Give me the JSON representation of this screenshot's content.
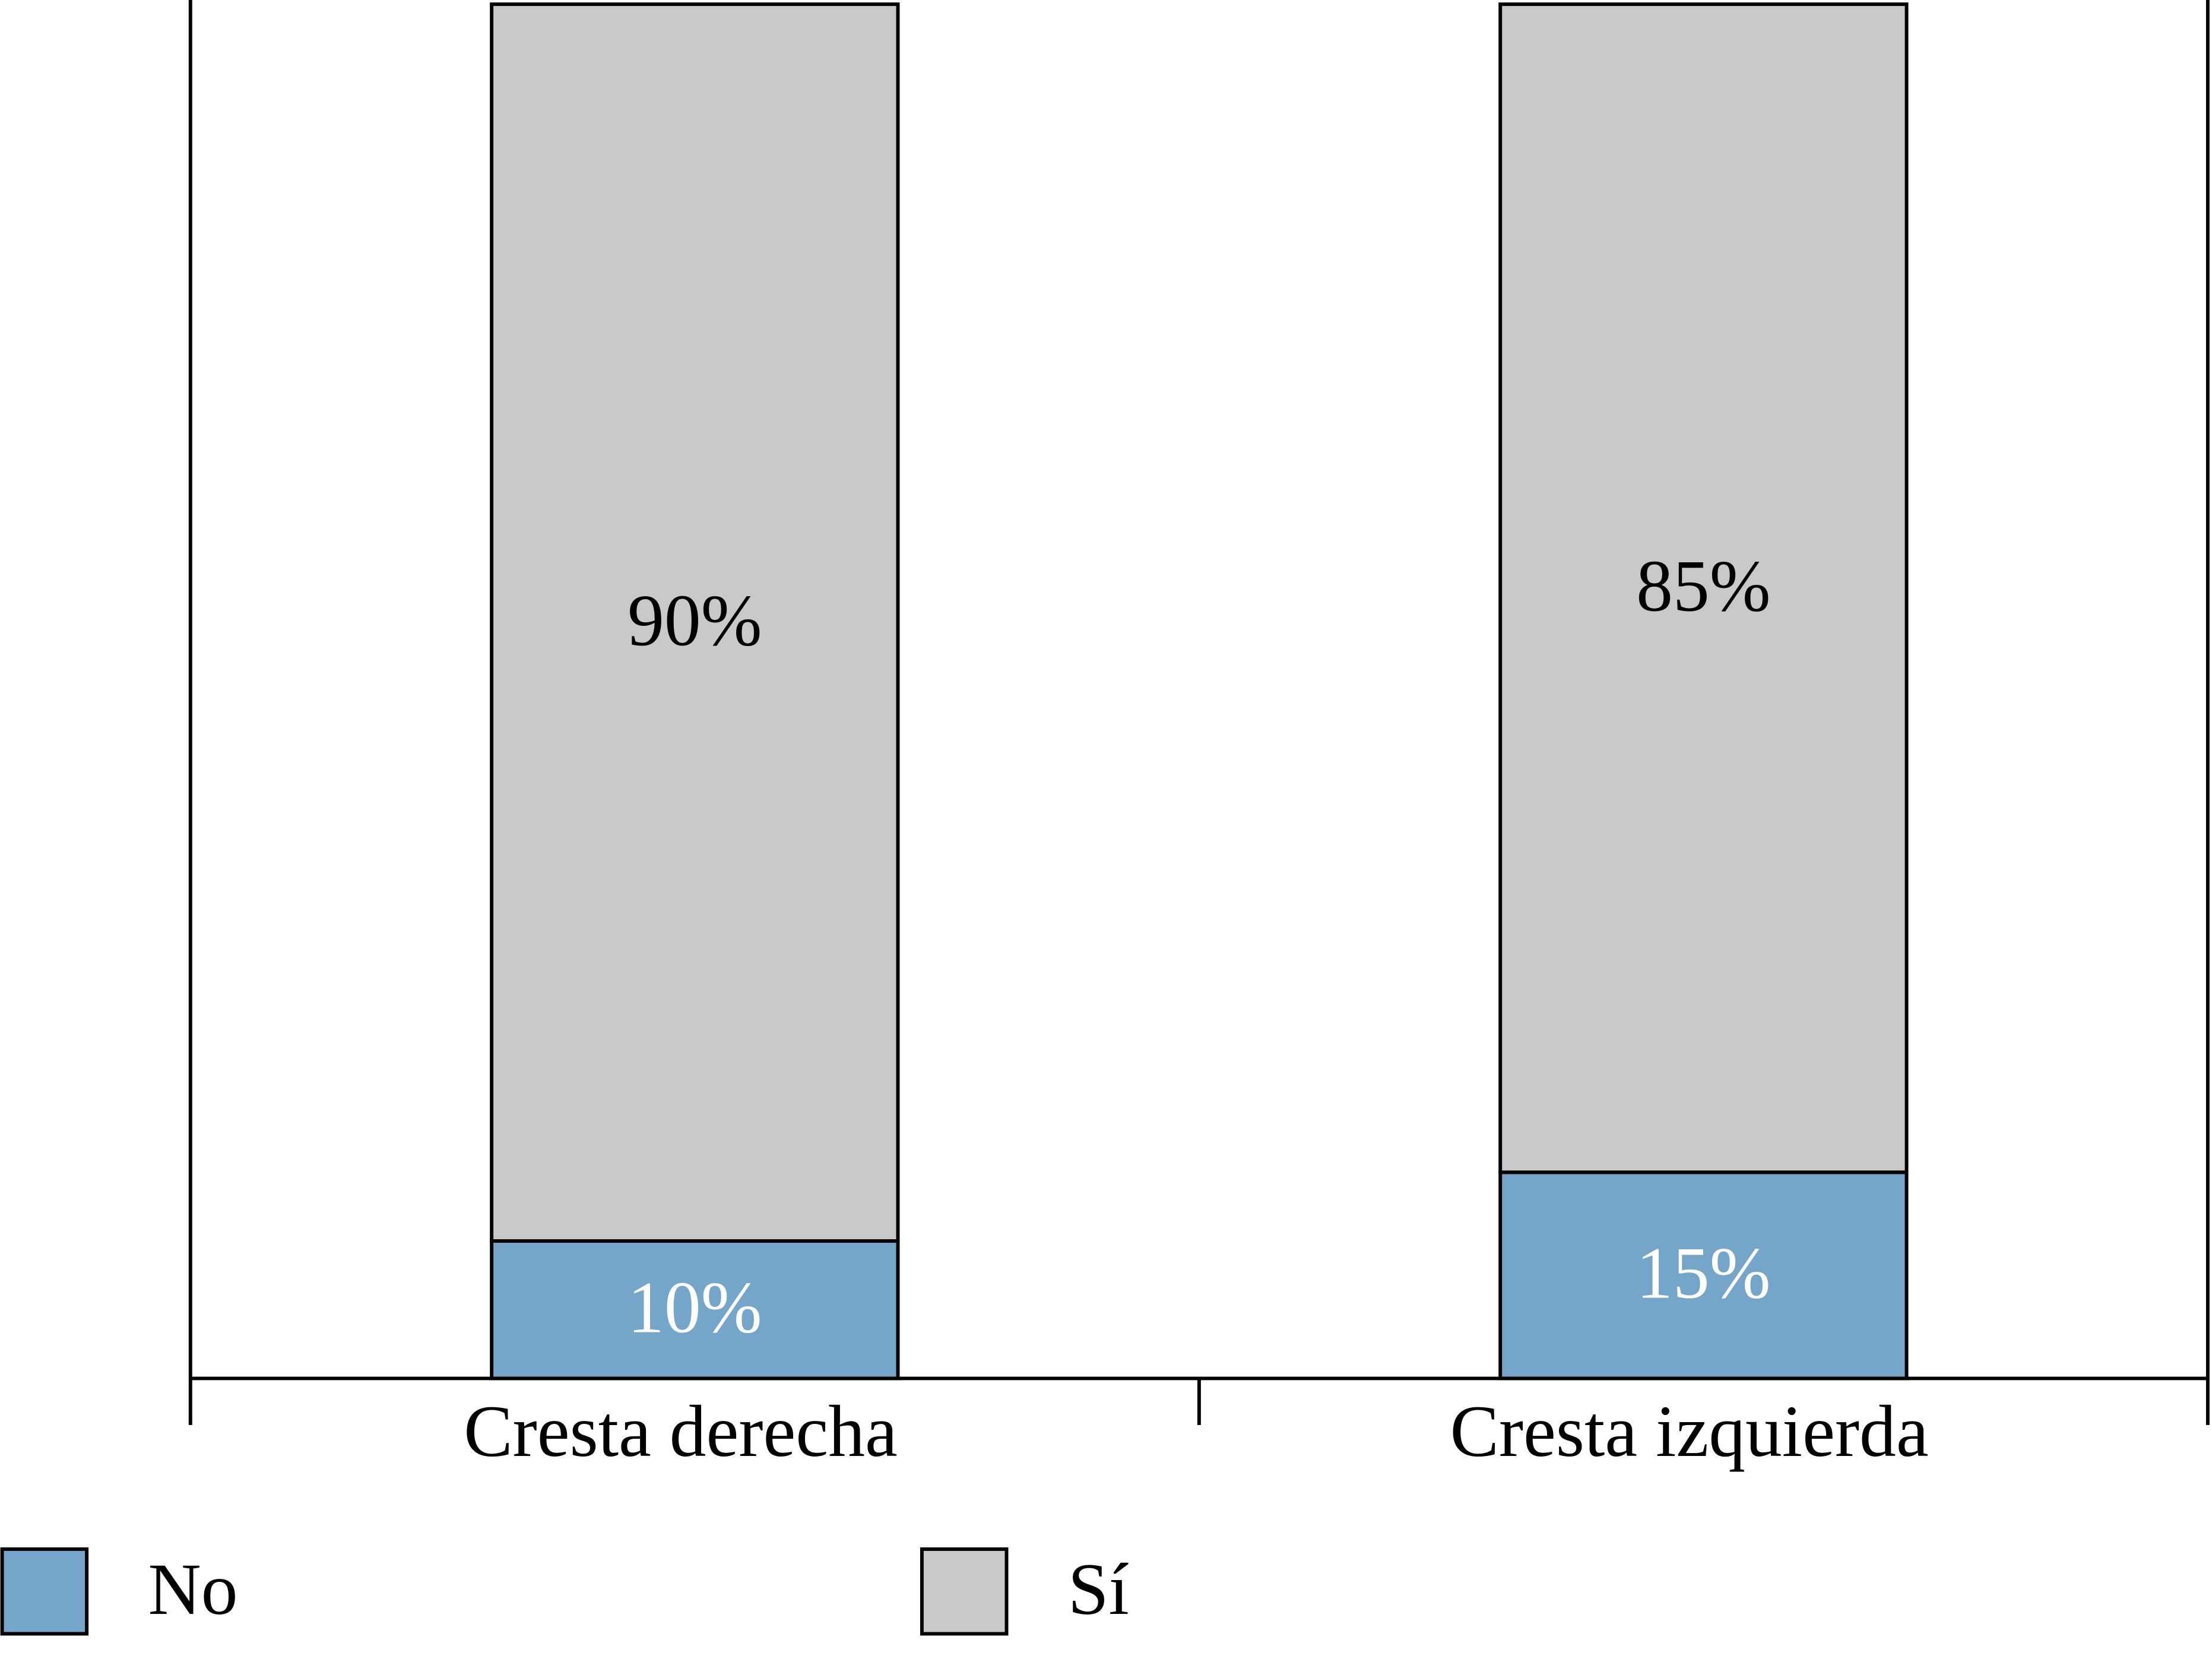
{
  "chart_data": {
    "type": "stacked_bar",
    "categories": [
      "Cresta derecha",
      "Cresta izquierda"
    ],
    "series": [
      {
        "name": "No",
        "color": "#75a6c9",
        "label_color": "#ffffff",
        "values": [
          10,
          15
        ],
        "value_labels": [
          "10%",
          "15%"
        ]
      },
      {
        "name": "Sí",
        "color": "#c8c9cb",
        "label_color": "#000000",
        "values": [
          90,
          85
        ],
        "value_labels": [
          "90%",
          "85%"
        ]
      }
    ],
    "ylim": [
      0,
      100
    ]
  }
}
